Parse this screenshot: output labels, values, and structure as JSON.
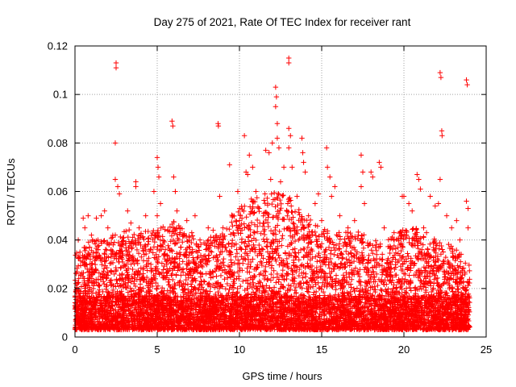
{
  "chart_data": {
    "type": "scatter",
    "title": "Day 275 of 2021, Rate Of TEC Index for receiver rant",
    "xlabel": "GPS time / hours",
    "ylabel": "ROTI / TECUs",
    "xlim": [
      0,
      25
    ],
    "ylim": [
      0,
      0.12
    ],
    "x_ticks": [
      0,
      5,
      10,
      15,
      20,
      25
    ],
    "x_tick_labels": [
      "0",
      "5",
      "10",
      "15",
      "20",
      "25"
    ],
    "y_ticks": [
      0,
      0.02,
      0.04,
      0.06,
      0.08,
      0.1,
      0.12
    ],
    "y_tick_labels": [
      "0",
      "0.02",
      "0.04",
      "0.06",
      "0.08",
      "0.1",
      "0.12"
    ],
    "grid": true,
    "marker": "plus",
    "colors": {
      "points": "#ff0000",
      "axes": "#000000",
      "grid": "#a0a0a0",
      "background": "#ffffff"
    },
    "series": [
      {
        "points": [
          [
            2.5,
            0.113
          ],
          [
            2.5,
            0.111
          ],
          [
            2.45,
            0.08
          ],
          [
            2.45,
            0.065
          ],
          [
            2.6,
            0.062
          ],
          [
            2.7,
            0.059
          ],
          [
            3.2,
            0.052
          ],
          [
            3.4,
            0.047
          ],
          [
            3.7,
            0.064
          ],
          [
            3.7,
            0.062
          ],
          [
            3.9,
            0.045
          ],
          [
            4.3,
            0.05
          ],
          [
            4.8,
            0.06
          ],
          [
            5.0,
            0.074
          ],
          [
            5.05,
            0.07
          ],
          [
            5.1,
            0.066
          ],
          [
            5.0,
            0.05
          ],
          [
            5.2,
            0.055
          ],
          [
            5.9,
            0.089
          ],
          [
            5.95,
            0.087
          ],
          [
            6.0,
            0.066
          ],
          [
            6.1,
            0.06
          ],
          [
            6.2,
            0.052
          ],
          [
            6.0,
            0.045
          ],
          [
            6.8,
            0.048
          ],
          [
            7.1,
            0.043
          ],
          [
            7.3,
            0.05
          ],
          [
            7.6,
            0.04
          ],
          [
            8.1,
            0.045
          ],
          [
            8.4,
            0.044
          ],
          [
            8.7,
            0.088
          ],
          [
            8.72,
            0.087
          ],
          [
            8.8,
            0.058
          ],
          [
            9.0,
            0.045
          ],
          [
            9.4,
            0.071
          ],
          [
            9.6,
            0.05
          ],
          [
            9.9,
            0.06
          ],
          [
            10.0,
            0.048
          ],
          [
            10.3,
            0.083
          ],
          [
            10.4,
            0.068
          ],
          [
            10.5,
            0.067
          ],
          [
            10.6,
            0.075
          ],
          [
            10.8,
            0.07
          ],
          [
            11.0,
            0.06
          ],
          [
            11.2,
            0.053
          ],
          [
            11.6,
            0.077
          ],
          [
            11.8,
            0.076
          ],
          [
            11.9,
            0.065
          ],
          [
            12.0,
            0.08
          ],
          [
            12.2,
            0.103
          ],
          [
            12.25,
            0.099
          ],
          [
            12.2,
            0.095
          ],
          [
            12.3,
            0.088
          ],
          [
            12.3,
            0.082
          ],
          [
            12.4,
            0.078
          ],
          [
            12.5,
            0.064
          ],
          [
            12.7,
            0.07
          ],
          [
            13.0,
            0.115
          ],
          [
            13.0,
            0.113
          ],
          [
            13.0,
            0.086
          ],
          [
            13.1,
            0.083
          ],
          [
            13.0,
            0.078
          ],
          [
            13.2,
            0.07
          ],
          [
            13.5,
            0.058
          ],
          [
            13.8,
            0.082
          ],
          [
            13.85,
            0.076
          ],
          [
            13.9,
            0.072
          ],
          [
            14.0,
            0.068
          ],
          [
            14.2,
            0.05
          ],
          [
            14.6,
            0.055
          ],
          [
            14.8,
            0.059
          ],
          [
            15.0,
            0.048
          ],
          [
            15.3,
            0.078
          ],
          [
            15.35,
            0.07
          ],
          [
            15.5,
            0.066
          ],
          [
            15.6,
            0.058
          ],
          [
            15.8,
            0.062
          ],
          [
            16.1,
            0.05
          ],
          [
            16.6,
            0.045
          ],
          [
            17.0,
            0.048
          ],
          [
            17.4,
            0.075
          ],
          [
            17.5,
            0.068
          ],
          [
            17.4,
            0.062
          ],
          [
            17.6,
            0.055
          ],
          [
            18.0,
            0.068
          ],
          [
            18.1,
            0.066
          ],
          [
            18.5,
            0.072
          ],
          [
            18.6,
            0.07
          ],
          [
            18.8,
            0.045
          ],
          [
            19.4,
            0.043
          ],
          [
            19.9,
            0.058
          ],
          [
            20.0,
            0.058
          ],
          [
            20.3,
            0.055
          ],
          [
            20.5,
            0.052
          ],
          [
            20.8,
            0.067
          ],
          [
            20.9,
            0.065
          ],
          [
            21.0,
            0.061
          ],
          [
            21.2,
            0.045
          ],
          [
            21.6,
            0.058
          ],
          [
            21.9,
            0.054
          ],
          [
            22.2,
            0.109
          ],
          [
            22.25,
            0.107
          ],
          [
            22.3,
            0.085
          ],
          [
            22.32,
            0.083
          ],
          [
            22.2,
            0.065
          ],
          [
            22.1,
            0.055
          ],
          [
            22.6,
            0.05
          ],
          [
            22.9,
            0.045
          ],
          [
            23.2,
            0.048
          ],
          [
            23.4,
            0.04
          ],
          [
            23.8,
            0.106
          ],
          [
            23.85,
            0.104
          ],
          [
            23.8,
            0.056
          ],
          [
            23.9,
            0.053
          ],
          [
            23.9,
            0.045
          ],
          [
            0.2,
            0.04
          ],
          [
            0.3,
            0.035
          ],
          [
            0.5,
            0.049
          ],
          [
            0.6,
            0.045
          ],
          [
            0.8,
            0.05
          ],
          [
            1.0,
            0.042
          ],
          [
            1.3,
            0.049
          ],
          [
            1.6,
            0.05
          ],
          [
            1.8,
            0.052
          ],
          [
            2.0,
            0.045
          ]
        ],
        "dense_band": {
          "description": "dense continuous cloud of points from 0 to 24 hours",
          "x_range": [
            0,
            24
          ],
          "y_floor": 0.003,
          "envelope_hours": [
            0,
            1,
            2,
            3,
            4,
            5,
            6,
            7,
            8,
            9,
            10,
            11,
            12,
            13,
            14,
            15,
            16,
            17,
            18,
            19,
            20,
            21,
            22,
            23,
            24
          ],
          "envelope_roti": [
            0.035,
            0.04,
            0.042,
            0.045,
            0.043,
            0.045,
            0.048,
            0.042,
            0.04,
            0.045,
            0.055,
            0.058,
            0.06,
            0.058,
            0.05,
            0.045,
            0.043,
            0.045,
            0.04,
            0.04,
            0.045,
            0.045,
            0.04,
            0.038,
            0.03
          ]
        }
      }
    ]
  }
}
